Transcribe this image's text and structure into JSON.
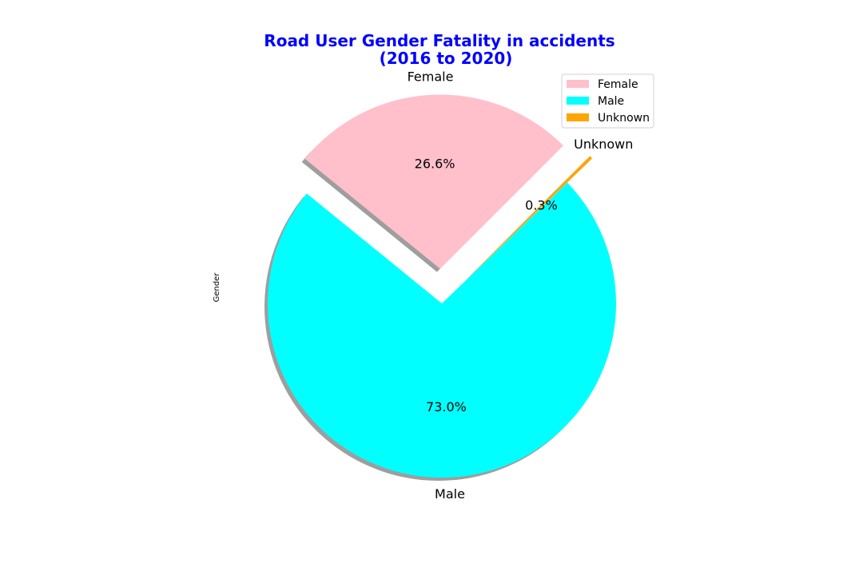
{
  "chart_data": {
    "type": "pie",
    "title_line1": "Road User Gender Fatality in accidents",
    "title_line2": "(2016 to 2020)",
    "title_color": "#0000ff",
    "ylabel": "Gender",
    "categories": [
      "Female",
      "Male",
      "Unknown"
    ],
    "values": [
      26.6,
      73.0,
      0.3
    ],
    "percent_labels": [
      "26.6%",
      "73.0%",
      "0.3%"
    ],
    "colors": [
      "#ffc0cb",
      "#00ffff",
      "#ffa500"
    ],
    "exploded": [
      true,
      false,
      true
    ],
    "shadow": true,
    "start_angle_deg": 45,
    "legend": {
      "entries": [
        "Female",
        "Male",
        "Unknown"
      ],
      "position": "upper-right"
    }
  }
}
